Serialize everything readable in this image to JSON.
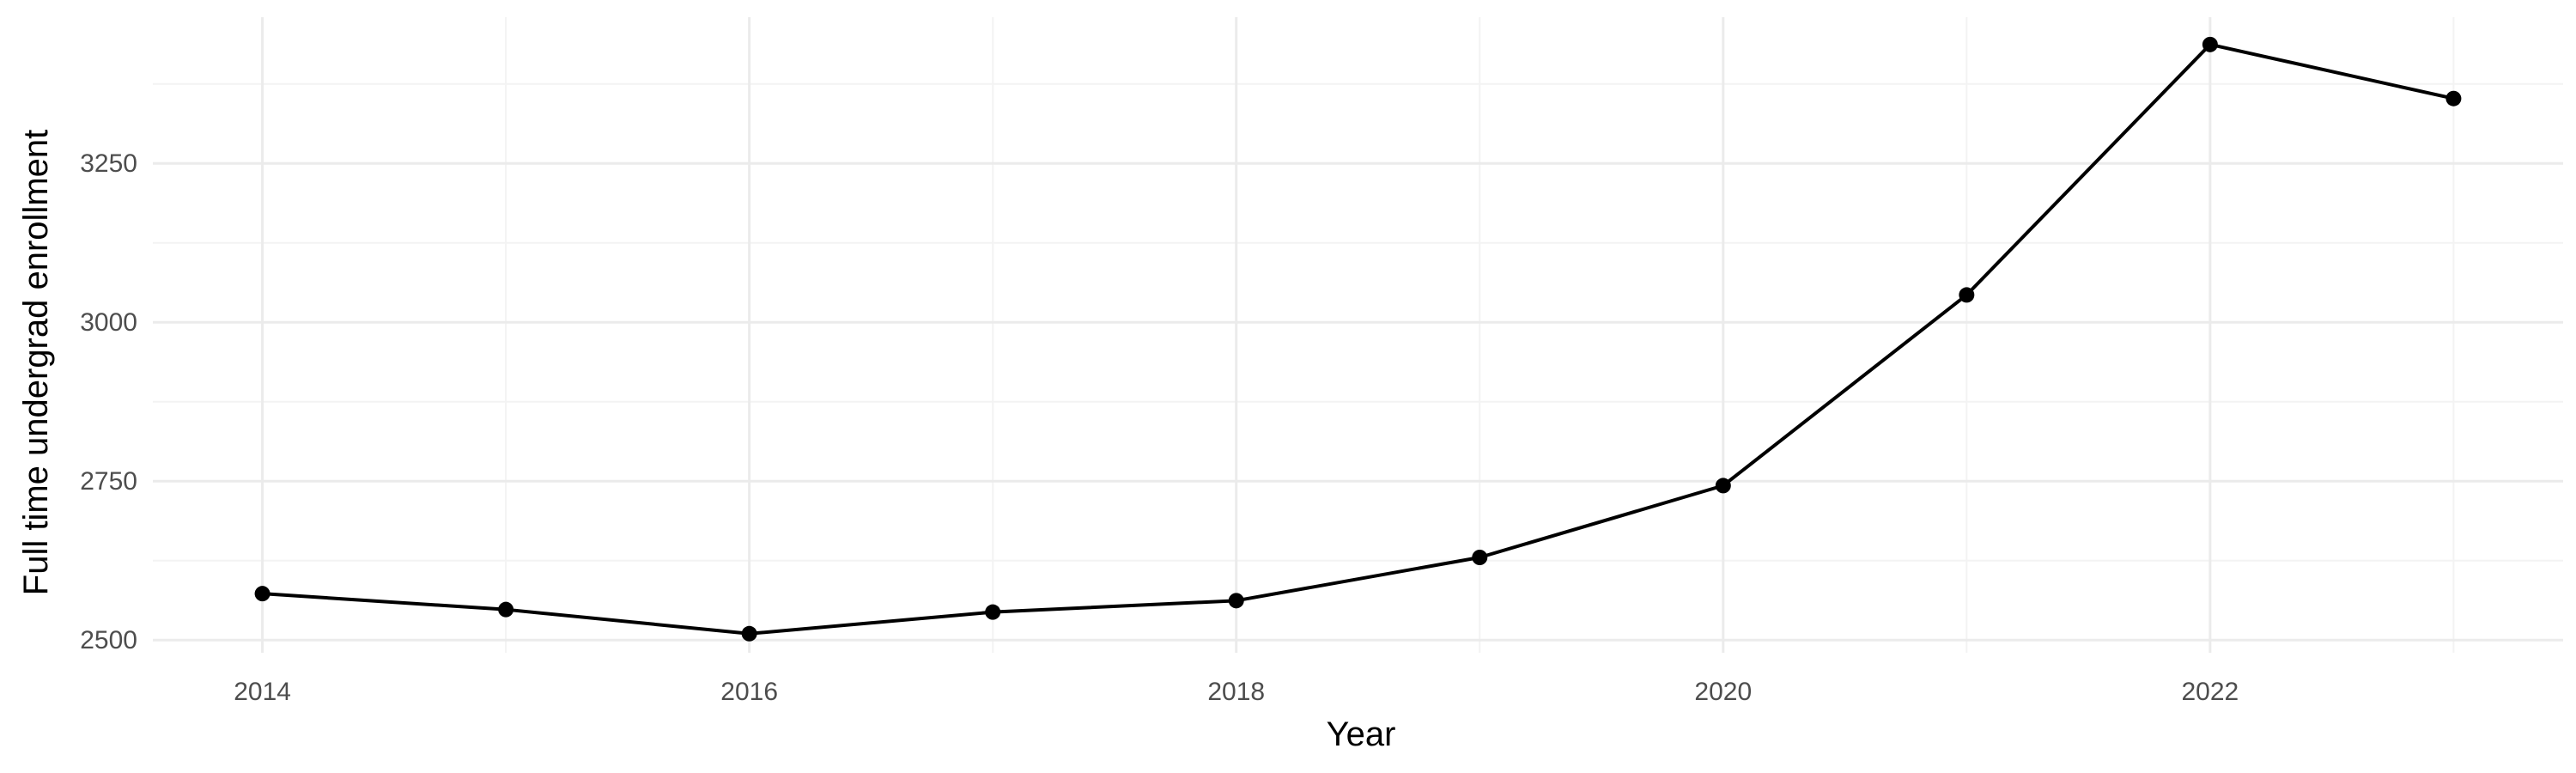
{
  "chart_data": {
    "type": "line",
    "title": "",
    "xlabel": "Year",
    "ylabel": "Full time undergrad enrollment",
    "x": [
      2014,
      2015,
      2016,
      2017,
      2018,
      2019,
      2020,
      2021,
      2022,
      2023
    ],
    "series": [
      {
        "values": [
          2573,
          2548,
          2510,
          2544,
          2562,
          2630,
          2743,
          3043,
          3437,
          3352
        ]
      }
    ],
    "x_ticks": [
      "2014",
      "2016",
      "2018",
      "2020",
      "2022"
    ],
    "y_ticks": [
      "2500",
      "2750",
      "3000",
      "3250"
    ],
    "xlim": [
      2013.55,
      2023.45
    ],
    "ylim": [
      2480,
      3480
    ],
    "grid": true,
    "legend": "none",
    "colors": {
      "line": "#000000",
      "point": "#000000",
      "grid_major": "#ebebeb",
      "grid_minor": "#f3f3f3",
      "tick_text": "#4d4d4d"
    }
  }
}
